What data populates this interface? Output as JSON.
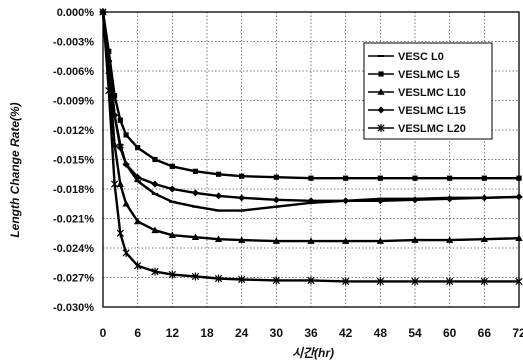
{
  "chart_data": {
    "type": "line",
    "title": "",
    "xlabel": "시간(hr)",
    "ylabel": "Length Change Rate(%)",
    "xlim": [
      0,
      72
    ],
    "ylim": [
      -0.03,
      0.0
    ],
    "x_ticks": [
      "0",
      "6",
      "12",
      "18",
      "24",
      "30",
      "36",
      "42",
      "48",
      "54",
      "60",
      "66",
      "72"
    ],
    "y_ticks": [
      "0.000%",
      "-0.003%",
      "-0.006%",
      "-0.009%",
      "-0.012%",
      "-0.015%",
      "-0.018%",
      "-0.021%",
      "-0.024%",
      "-0.027%",
      "-0.030%"
    ],
    "grid": true,
    "legend_position": "top-right",
    "series": [
      {
        "name": "VESC L0",
        "marker": "dash",
        "x": [
          0,
          1,
          2,
          3,
          4,
          6,
          9,
          12,
          16,
          20,
          24,
          30,
          36,
          42,
          48,
          54,
          60,
          66,
          72
        ],
        "y": [
          0.0,
          -0.005,
          -0.0105,
          -0.0135,
          -0.0155,
          -0.0172,
          -0.0185,
          -0.0193,
          -0.0198,
          -0.0202,
          -0.0202,
          -0.0198,
          -0.0194,
          -0.0192,
          -0.019,
          -0.019,
          -0.0189,
          -0.0189,
          -0.0188
        ]
      },
      {
        "name": "VESLMC L5",
        "marker": "square",
        "x": [
          0,
          1,
          2,
          3,
          4,
          6,
          9,
          12,
          16,
          20,
          24,
          30,
          36,
          42,
          48,
          54,
          60,
          66,
          72
        ],
        "y": [
          0.0,
          -0.004,
          -0.0085,
          -0.011,
          -0.0125,
          -0.0138,
          -0.015,
          -0.0157,
          -0.0162,
          -0.0165,
          -0.0167,
          -0.0168,
          -0.0169,
          -0.0169,
          -0.0169,
          -0.0169,
          -0.0169,
          -0.0169,
          -0.0169
        ]
      },
      {
        "name": "VESLMC L10",
        "marker": "triangle",
        "x": [
          0,
          1,
          2,
          3,
          4,
          6,
          9,
          12,
          16,
          20,
          24,
          30,
          36,
          42,
          48,
          54,
          60,
          66,
          72
        ],
        "y": [
          0.0,
          -0.006,
          -0.0135,
          -0.0175,
          -0.0195,
          -0.0213,
          -0.0222,
          -0.0227,
          -0.0229,
          -0.0231,
          -0.0232,
          -0.0233,
          -0.0233,
          -0.0233,
          -0.0233,
          -0.0232,
          -0.0232,
          -0.0231,
          -0.023
        ]
      },
      {
        "name": "VESLMC L15",
        "marker": "diamond",
        "x": [
          0,
          1,
          2,
          3,
          4,
          6,
          9,
          12,
          16,
          20,
          24,
          30,
          36,
          42,
          48,
          54,
          60,
          66,
          72
        ],
        "y": [
          0.0,
          -0.005,
          -0.0105,
          -0.0138,
          -0.0155,
          -0.0168,
          -0.0175,
          -0.018,
          -0.0184,
          -0.0187,
          -0.0189,
          -0.0191,
          -0.0192,
          -0.0192,
          -0.0192,
          -0.0191,
          -0.019,
          -0.0189,
          -0.0188
        ]
      },
      {
        "name": "VESLMC L20",
        "marker": "star",
        "x": [
          0,
          1,
          2,
          3,
          4,
          6,
          9,
          12,
          16,
          20,
          24,
          30,
          36,
          42,
          48,
          54,
          60,
          66,
          72
        ],
        "y": [
          0.0,
          -0.008,
          -0.0175,
          -0.0225,
          -0.0245,
          -0.0258,
          -0.0264,
          -0.0267,
          -0.0269,
          -0.0271,
          -0.0272,
          -0.0273,
          -0.0273,
          -0.0274,
          -0.0274,
          -0.0274,
          -0.0274,
          -0.0274,
          -0.0274
        ]
      }
    ]
  }
}
